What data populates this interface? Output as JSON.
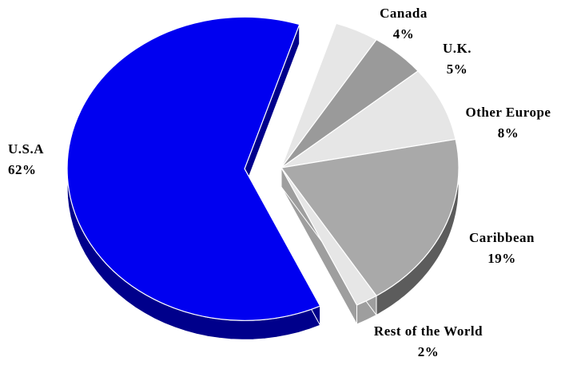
{
  "chart_data": {
    "type": "pie",
    "title": "",
    "slices": [
      {
        "label": "U.S.A",
        "value": 62,
        "value_label": "62%",
        "color": "#0000f0",
        "side_color": "#00008b",
        "exploded": true
      },
      {
        "label": "Canada",
        "value": 4,
        "value_label": "4%",
        "color": "#e6e6e6",
        "side_color": "#bdbdbd"
      },
      {
        "label": "U.K.",
        "value": 5,
        "value_label": "5%",
        "color": "#9a9a9a",
        "side_color": "#6f6f6f"
      },
      {
        "label": "Other Europe",
        "value": 8,
        "value_label": "8%",
        "color": "#e6e6e6",
        "side_color": "#bdbdbd"
      },
      {
        "label": "Caribbean",
        "value": 19,
        "value_label": "19%",
        "color": "#a9a9a9",
        "side_color": "#5c5c5c"
      },
      {
        "label": "Rest of the World",
        "value": 2,
        "value_label": "2%",
        "color": "#e6e6e6",
        "side_color": "#9e9e9e"
      }
    ],
    "style": "3d-exploded",
    "legend": "none"
  }
}
